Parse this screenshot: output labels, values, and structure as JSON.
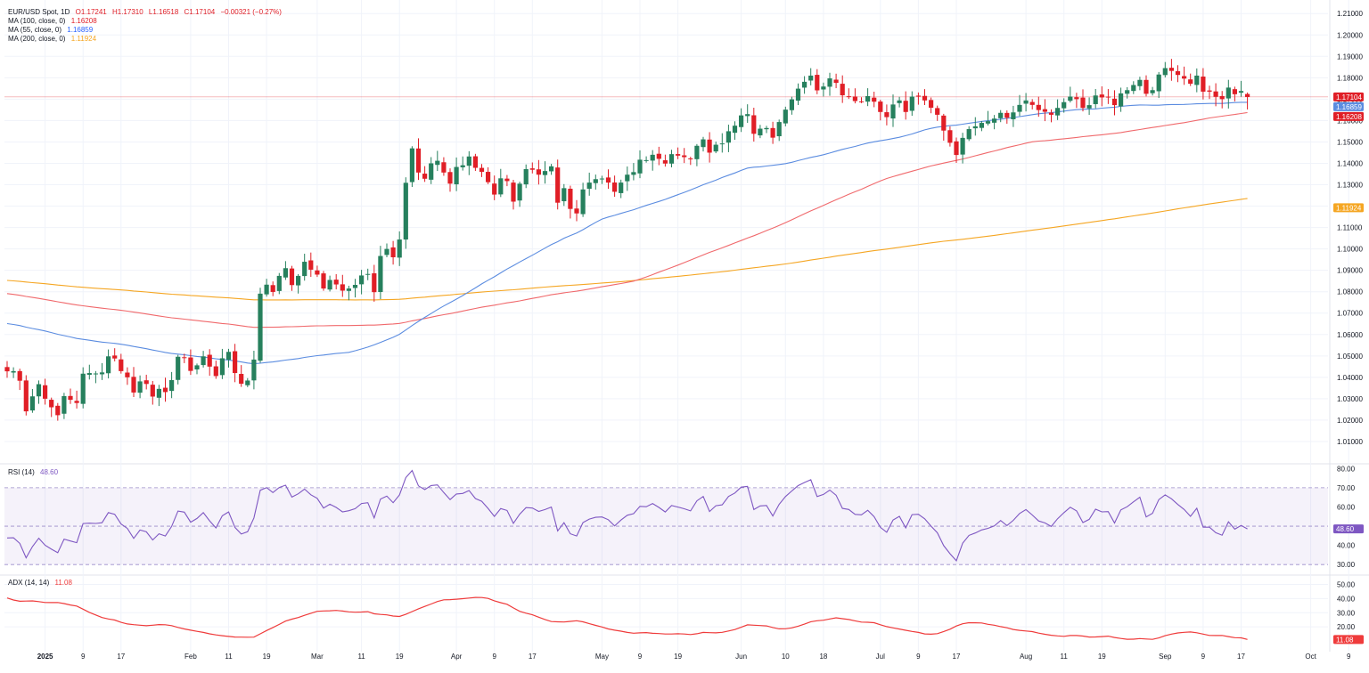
{
  "colors": {
    "up": "#26805d",
    "down": "#e01e26",
    "ma100": "#f0696c",
    "ma55": "#5b8ce0",
    "ma200": "#f5a623",
    "rsi": "#7e57c2",
    "adx": "#ef3b3b",
    "grid": "#f0f3fa",
    "axis_text": "#131722"
  },
  "legend": {
    "symbol": "EUR/USD Spot, 1D",
    "open": "O1.17241",
    "high": "H1.17310",
    "low": "L1.16518",
    "close": "C1.17104",
    "change": "−0.00321 (−0.27%)",
    "ma100_label": "MA (100, close, 0)",
    "ma100_value": "1.16208",
    "ma55_label": "MA (55, close, 0)",
    "ma55_value": "1.16859",
    "ma200_label": "MA (200, close, 0)",
    "ma200_value": "1.11924",
    "rsi_label": "RSI (14)",
    "rsi_value": "48.60",
    "adx_label": "ADX (14, 14)",
    "adx_value": "11.08"
  },
  "price_badges": [
    {
      "text": "1.17104",
      "value": 1.17104,
      "color": "#e01e26"
    },
    {
      "text": "1.16859",
      "value": 1.16859,
      "color": "#5b8ce0"
    },
    {
      "text": "1.16208",
      "value": 1.16208,
      "color": "#e01e26"
    },
    {
      "text": "1.11924",
      "value": 1.11924,
      "color": "#f5a623"
    }
  ],
  "rsi_badge": {
    "text": "48.60",
    "value": 48.6
  },
  "adx_badge": {
    "text": "11.08",
    "value": 11.08
  },
  "chart_data": {
    "type": "candlestick",
    "price_axis": {
      "ticks": [
        "1.21000",
        "1.20000",
        "1.19000",
        "1.18000",
        "1.17000",
        "1.16000",
        "1.15000",
        "1.14000",
        "1.13000",
        "1.12000",
        "1.11000",
        "1.10000",
        "1.09000",
        "1.08000",
        "1.07000",
        "1.06000",
        "1.05000",
        "1.04000",
        "1.03000",
        "1.02000",
        "1.01000"
      ],
      "range": [
        1.0,
        1.2155
      ]
    },
    "rsi_axis": {
      "ticks": [
        "80.00",
        "70.00",
        "60.00",
        "40.00",
        "30.00"
      ],
      "range": [
        25,
        82
      ],
      "band": [
        30,
        70
      ]
    },
    "adx_axis": {
      "ticks": [
        "50.00",
        "40.00",
        "30.00",
        "20.00"
      ],
      "range": [
        5,
        56
      ]
    },
    "x_labels": [
      {
        "text": "2025",
        "i": 6
      },
      {
        "text": "9",
        "i": 12
      },
      {
        "text": "17",
        "i": 18
      },
      {
        "text": "Feb",
        "i": 29
      },
      {
        "text": "11",
        "i": 35
      },
      {
        "text": "19",
        "i": 41
      },
      {
        "text": "Mar",
        "i": 49
      },
      {
        "text": "11",
        "i": 56
      },
      {
        "text": "19",
        "i": 62
      },
      {
        "text": "Apr",
        "i": 71
      },
      {
        "text": "9",
        "i": 77
      },
      {
        "text": "17",
        "i": 83
      },
      {
        "text": "May",
        "i": 94
      },
      {
        "text": "9",
        "i": 100
      },
      {
        "text": "19",
        "i": 106
      },
      {
        "text": "Jun",
        "i": 116
      },
      {
        "text": "10",
        "i": 123
      },
      {
        "text": "18",
        "i": 129
      },
      {
        "text": "Jul",
        "i": 138
      },
      {
        "text": "9",
        "i": 144
      },
      {
        "text": "17",
        "i": 150
      },
      {
        "text": "Aug",
        "i": 161
      },
      {
        "text": "11",
        "i": 167
      },
      {
        "text": "19",
        "i": 173
      },
      {
        "text": "Sep",
        "i": 183
      },
      {
        "text": "9",
        "i": 189
      },
      {
        "text": "17",
        "i": 195
      },
      {
        "text": "Oct",
        "i": 206
      },
      {
        "text": "9",
        "i": 212
      }
    ],
    "closes": [
      1.0428,
      1.0429,
      1.0384,
      1.0241,
      1.0311,
      1.0368,
      1.03,
      1.026,
      1.0223,
      1.0312,
      1.0295,
      1.028,
      1.0417,
      1.042,
      1.0418,
      1.0423,
      1.0498,
      1.0488,
      1.0429,
      1.04,
      1.0329,
      1.0381,
      1.0369,
      1.031,
      1.0346,
      1.0331,
      1.0387,
      1.0496,
      1.049,
      1.043,
      1.0456,
      1.0498,
      1.045,
      1.0406,
      1.0489,
      1.0519,
      1.042,
      1.037,
      1.0385,
      1.0483,
      1.0791,
      1.0833,
      1.0799,
      1.0874,
      1.091,
      1.0831,
      1.0874,
      1.094,
      1.0903,
      1.088,
      1.0815,
      1.0855,
      1.0834,
      1.0805,
      1.0815,
      1.0832,
      1.0876,
      1.0883,
      1.0798,
      1.0967,
      1.1,
      1.0961,
      1.1044,
      1.1309,
      1.147,
      1.1357,
      1.1328,
      1.14,
      1.1412,
      1.1357,
      1.1305,
      1.1383,
      1.1391,
      1.1432,
      1.1379,
      1.136,
      1.1312,
      1.1254,
      1.133,
      1.1317,
      1.1221,
      1.1305,
      1.1373,
      1.137,
      1.1347,
      1.1364,
      1.1386,
      1.1216,
      1.1284,
      1.1187,
      1.1166,
      1.1278,
      1.131,
      1.1326,
      1.1329,
      1.131,
      1.1267,
      1.131,
      1.1347,
      1.1359,
      1.1417,
      1.1415,
      1.144,
      1.1421,
      1.1399,
      1.1443,
      1.1436,
      1.1429,
      1.142,
      1.1482,
      1.1512,
      1.145,
      1.1487,
      1.1493,
      1.155,
      1.1576,
      1.1624,
      1.163,
      1.1538,
      1.1562,
      1.1565,
      1.152,
      1.1593,
      1.1651,
      1.1699,
      1.1749,
      1.1781,
      1.181,
      1.1741,
      1.1759,
      1.1797,
      1.1776,
      1.1718,
      1.1713,
      1.1691,
      1.1689,
      1.1714,
      1.1688,
      1.164,
      1.1616,
      1.1675,
      1.1694,
      1.164,
      1.1712,
      1.1714,
      1.1694,
      1.166,
      1.1627,
      1.1553,
      1.1496,
      1.1439,
      1.1519,
      1.156,
      1.1573,
      1.1589,
      1.1597,
      1.1609,
      1.1636,
      1.1613,
      1.1638,
      1.1673,
      1.1694,
      1.1673,
      1.1649,
      1.1641,
      1.1627,
      1.1659,
      1.1686,
      1.1712,
      1.17,
      1.1659,
      1.1672,
      1.1717,
      1.1708,
      1.1709,
      1.1672,
      1.1727,
      1.1742,
      1.1766,
      1.179,
      1.1725,
      1.1742,
      1.1815,
      1.1845,
      1.1832,
      1.1813,
      1.1796,
      1.1772,
      1.181,
      1.1735,
      1.1735,
      1.1711,
      1.17,
      1.1754,
      1.1723,
      1.1738,
      1.171
    ],
    "last_close": 1.17104,
    "last_bar": {
      "open": 1.17241,
      "high": 1.1731,
      "low": 1.16518,
      "close": 1.17104
    },
    "rsi_last": 48.6,
    "adx_last": 11.08,
    "series": [
      {
        "name": "MA (100, close, 0)",
        "value": 1.16208
      },
      {
        "name": "MA (55, close, 0)",
        "value": 1.16859
      },
      {
        "name": "MA (200, close, 0)",
        "value": 1.11924
      },
      {
        "name": "RSI (14)",
        "value": 48.6
      },
      {
        "name": "ADX (14, 14)",
        "value": 11.08
      }
    ],
    "grid": true
  }
}
